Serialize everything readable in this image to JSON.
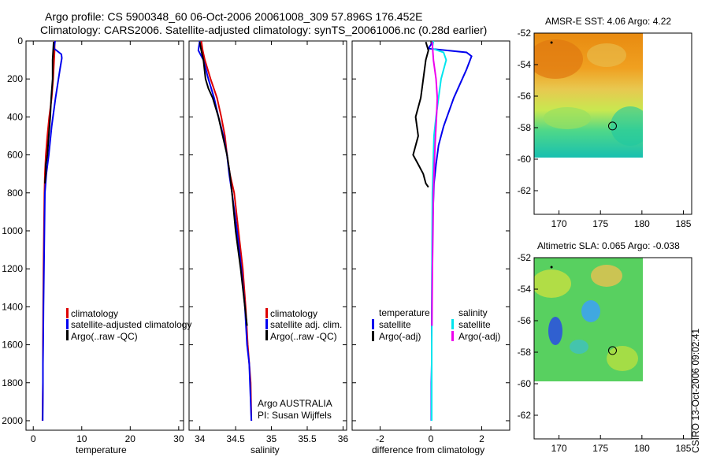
{
  "title": {
    "line1": "Argo profile: CS 5900348_60 06-Oct-2006 20061008_309 57.896S 176.452E",
    "line2": "Climatology: CARS2006. Satellite-adjusted climatology: synTS_20061006.nc (0.28d earlier)"
  },
  "depth_ticks": [
    "0",
    "200",
    "400",
    "600",
    "800",
    "1000",
    "1200",
    "1400",
    "1600",
    "1800",
    "2000"
  ],
  "colors": {
    "climatology": "#dd0000",
    "satellite": "#0000ee",
    "argo": "#000000",
    "satellite_salinity": "#00e5ee",
    "argo_adj_salinity": "#ee00ee",
    "marker": "#000000"
  },
  "chart_data": [
    {
      "type": "line",
      "id": "temperature",
      "xlabel": "temperature",
      "ylabel": "",
      "xlim": [
        -1.5,
        31
      ],
      "ylim": [
        2050,
        0
      ],
      "xticks": [
        "0",
        "10",
        "20",
        "30"
      ],
      "legend": [
        "climatology",
        "satellite-adjusted climatology",
        "Argo(..raw -QC)"
      ],
      "series": [
        {
          "name": "climatology",
          "color": "#dd0000",
          "x": [
            4.4,
            4.4,
            4.3,
            4.1,
            3.8,
            3.3,
            2.9,
            2.6,
            2.4,
            2.3,
            2.2,
            2.1,
            2.05,
            2.0,
            2.0,
            2.0,
            1.95,
            1.9
          ],
          "depth": [
            0,
            50,
            100,
            200,
            300,
            400,
            500,
            600,
            700,
            800,
            1000,
            1200,
            1400,
            1600,
            1700,
            1800,
            1900,
            2000
          ]
        },
        {
          "name": "satellite-adjusted climatology",
          "color": "#0000ee",
          "x": [
            4.5,
            4.3,
            5.8,
            5.9,
            5.5,
            4.6,
            3.8,
            3.2,
            2.7,
            2.4,
            2.3,
            2.2,
            2.1,
            2.05,
            2.0,
            2.0,
            1.95
          ],
          "depth": [
            0,
            40,
            70,
            90,
            150,
            300,
            450,
            600,
            700,
            800,
            1000,
            1200,
            1400,
            1600,
            1700,
            1800,
            2000
          ]
        },
        {
          "name": "Argo(..raw -QC)",
          "color": "#000000",
          "x": [
            4.2,
            4.0,
            4.0,
            3.7,
            3.5,
            3.2,
            2.9,
            2.6,
            2.6,
            2.5,
            2.4
          ],
          "depth": [
            5,
            100,
            200,
            300,
            400,
            500,
            600,
            650,
            700,
            720,
            750
          ]
        }
      ]
    },
    {
      "type": "line",
      "id": "salinity",
      "xlabel": "salinity",
      "ylabel": "",
      "xlim": [
        33.85,
        36.05
      ],
      "ylim": [
        2050,
        0
      ],
      "xticks": [
        "34",
        "34.5",
        "35",
        "35.5",
        "36"
      ],
      "legend": [
        "climatology",
        "satellite adj. clim.",
        "Argo(..raw -QC)"
      ],
      "annotations": [
        "Argo AUSTRALIA",
        "PI: Susan Wijffels"
      ],
      "series": [
        {
          "name": "climatology",
          "color": "#dd0000",
          "x": [
            34.02,
            34.04,
            34.07,
            34.15,
            34.24,
            34.3,
            34.35,
            34.38,
            34.42,
            34.48,
            34.54,
            34.6,
            34.64,
            34.67,
            34.69,
            34.71,
            34.72
          ],
          "depth": [
            0,
            50,
            100,
            200,
            300,
            400,
            500,
            600,
            700,
            800,
            1000,
            1200,
            1400,
            1600,
            1700,
            1800,
            2000
          ]
        },
        {
          "name": "satellite adj. clim.",
          "color": "#0000ee",
          "x": [
            34.0,
            33.98,
            34.05,
            34.12,
            34.2,
            34.26,
            34.33,
            34.38,
            34.41,
            34.45,
            34.52,
            34.58,
            34.63,
            34.66,
            34.69,
            34.7,
            34.72
          ],
          "depth": [
            0,
            50,
            100,
            200,
            300,
            400,
            500,
            600,
            700,
            800,
            1000,
            1200,
            1400,
            1600,
            1700,
            1800,
            2000
          ]
        },
        {
          "name": "Argo(..raw -QC)",
          "color": "#000000",
          "x": [
            34.0,
            34.02,
            34.05,
            34.08,
            34.12,
            34.18,
            34.26,
            34.32,
            34.38,
            34.42,
            34.45,
            34.5,
            34.57,
            34.63,
            34.66
          ],
          "depth": [
            5,
            50,
            100,
            200,
            250,
            300,
            400,
            500,
            600,
            700,
            800,
            1000,
            1200,
            1400,
            1500
          ]
        }
      ]
    },
    {
      "type": "line",
      "id": "difference",
      "xlabel": "difference from climatology",
      "ylabel": "",
      "xlim": [
        -3.1,
        3.1
      ],
      "ylim": [
        2050,
        0
      ],
      "xticks": [
        "-2",
        "0",
        "2"
      ],
      "legend": [
        "temperature",
        "satellite",
        "Argo(-adj)",
        "salinity",
        "satellite",
        "Argo(-adj)"
      ],
      "series": [
        {
          "name": "temperature satellite",
          "color": "#0000ee",
          "x": [
            0.1,
            -0.1,
            1.4,
            1.6,
            1.4,
            0.9,
            0.5,
            0.3,
            0.2,
            0.12,
            0.08,
            0.05,
            0.04,
            0.03,
            0.03,
            0.02,
            0.02
          ],
          "depth": [
            0,
            40,
            60,
            80,
            150,
            300,
            450,
            550,
            650,
            750,
            900,
            1100,
            1300,
            1500,
            1700,
            1800,
            2000
          ]
        },
        {
          "name": "temperature Argo(-adj)",
          "color": "#000000",
          "x": [
            -0.2,
            -0.1,
            -0.2,
            -0.3,
            -0.4,
            -0.6,
            -0.5,
            -0.7,
            -0.5,
            -0.3,
            -0.2,
            -0.1
          ],
          "depth": [
            5,
            50,
            100,
            200,
            300,
            400,
            500,
            600,
            650,
            700,
            750,
            770
          ]
        },
        {
          "name": "salinity satellite",
          "color": "#00e5ee",
          "x": [
            0.1,
            0.05,
            0.5,
            0.6,
            0.4,
            0.2,
            0.12,
            0.1,
            0.08,
            0.06,
            0.05,
            0.04,
            0.04,
            0.03,
            0.03,
            0.03
          ],
          "depth": [
            0,
            40,
            60,
            100,
            200,
            400,
            500,
            600,
            700,
            800,
            1000,
            1200,
            1400,
            1600,
            1800,
            2000
          ]
        },
        {
          "name": "salinity Argo(-adj)",
          "color": "#ee00ee",
          "x": [
            0.05,
            0.1,
            0.2,
            0.25,
            0.22,
            0.18,
            0.15,
            0.12,
            0.1,
            0.08,
            0.06,
            0.04
          ],
          "depth": [
            5,
            100,
            200,
            300,
            400,
            500,
            600,
            700,
            800,
            1000,
            1200,
            1500
          ]
        }
      ]
    },
    {
      "type": "heatmap",
      "id": "sst_map",
      "title": "AMSR-E SST: 4.06 Argo: 4.22",
      "xlim": [
        167,
        186
      ],
      "ylim": [
        -63.5,
        -52
      ],
      "xticks": [
        "170",
        "175",
        "180",
        "185"
      ],
      "yticks": [
        "-52",
        "-54",
        "-56",
        "-58",
        "-60",
        "-62"
      ],
      "data_extent": {
        "lon": [
          167,
          180
        ],
        "lat": [
          -60,
          -52
        ]
      },
      "markers": [
        {
          "lon": 176.452,
          "lat": -57.896,
          "kind": "circle"
        },
        {
          "lon": 169.1,
          "lat": -52.6,
          "kind": "dot"
        }
      ]
    },
    {
      "type": "heatmap",
      "id": "sla_map",
      "title": "Altimetric SLA: 0.065 Argo: -0.038",
      "xlim": [
        167,
        186
      ],
      "ylim": [
        -63.5,
        -52
      ],
      "xticks": [
        "170",
        "175",
        "180",
        "185"
      ],
      "yticks": [
        "-52",
        "-54",
        "-56",
        "-58",
        "-60",
        "-62"
      ],
      "data_extent": {
        "lon": [
          167,
          180
        ],
        "lat": [
          -60,
          -52
        ]
      },
      "markers": [
        {
          "lon": 176.452,
          "lat": -57.896,
          "kind": "circle"
        },
        {
          "lon": 169.1,
          "lat": -52.6,
          "kind": "dot"
        }
      ]
    }
  ],
  "credit": "CSIRO 13-Oct-2006 09:02:41"
}
